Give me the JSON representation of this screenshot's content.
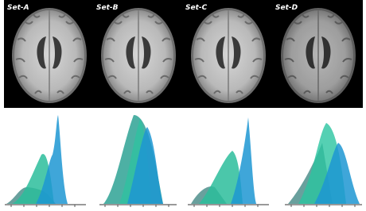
{
  "panels": [
    {
      "label": "Set-A"
    },
    {
      "label": "Set-B"
    },
    {
      "label": "Set-C"
    },
    {
      "label": "Set-D"
    }
  ]
}
